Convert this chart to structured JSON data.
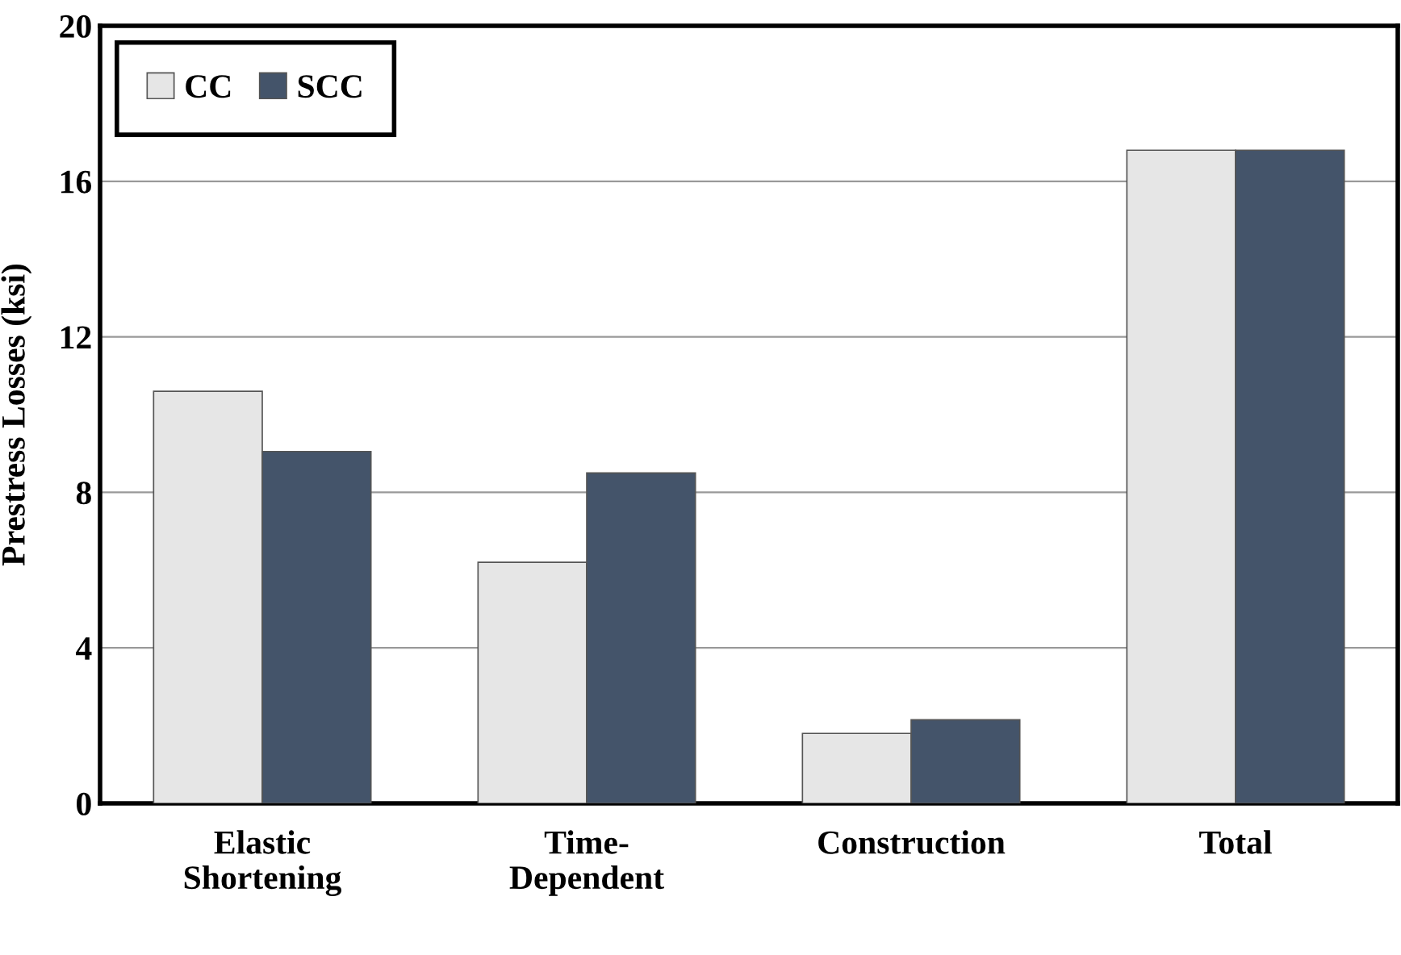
{
  "chart_data": {
    "type": "bar",
    "ylabel": "Prestress Losses (ksi)",
    "categories": [
      "Elastic\nShortening",
      "Time-\nDependent",
      "Construction",
      "Total"
    ],
    "series": [
      {
        "name": "CC",
        "color": "#e6e6e6",
        "values": [
          10.6,
          6.2,
          1.8,
          16.8
        ]
      },
      {
        "name": "SCC",
        "color": "#44546a",
        "values": [
          9.05,
          8.5,
          2.15,
          16.8
        ]
      }
    ],
    "ylim": [
      0,
      20
    ],
    "yticks": [
      0,
      4,
      8,
      12,
      16,
      20
    ],
    "grid": "y",
    "legend": "top left"
  }
}
